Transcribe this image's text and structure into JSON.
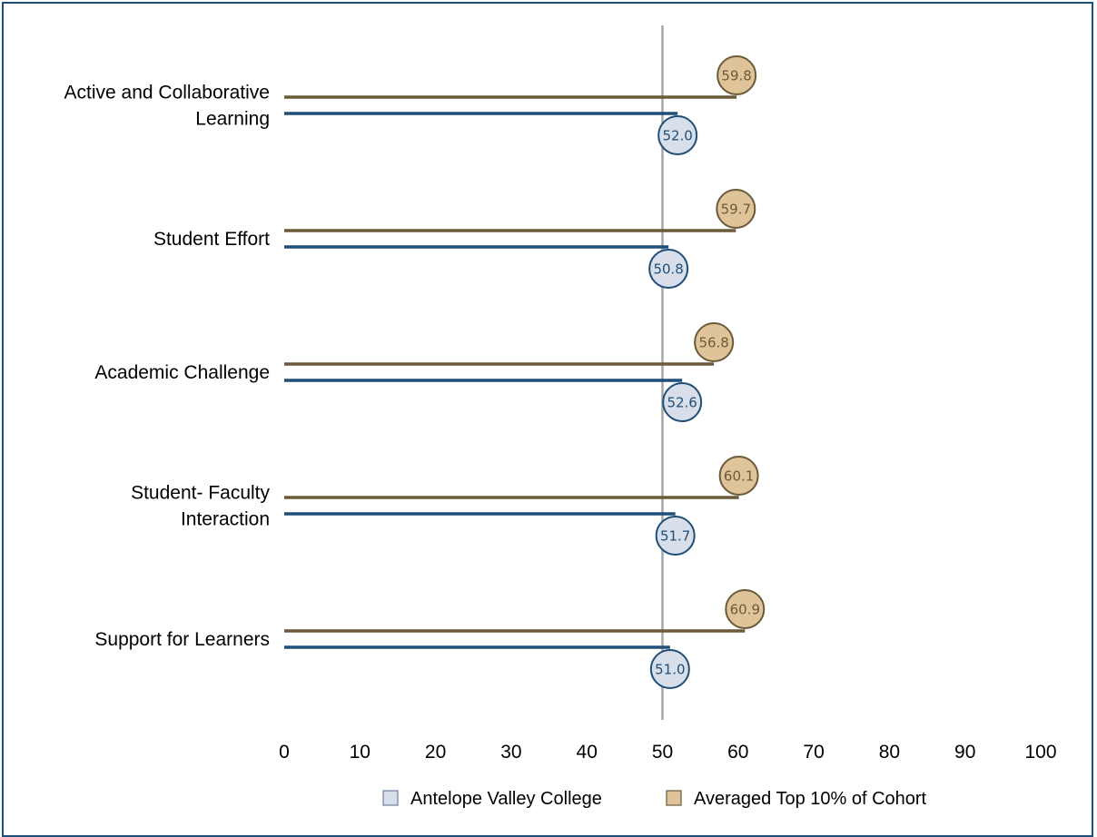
{
  "chart_data": {
    "type": "bar",
    "orientation": "horizontal",
    "categories": [
      [
        "Active and Collaborative",
        "Learning"
      ],
      [
        "Student Effort"
      ],
      [
        "Academic Challenge"
      ],
      [
        "Student- Faculty",
        "Interaction"
      ],
      [
        "Support for Learners"
      ]
    ],
    "series": [
      {
        "name": "Averaged Top 10% of Cohort",
        "values": [
          59.8,
          59.7,
          56.8,
          60.1,
          60.9
        ],
        "color": "#6b5a3a",
        "marker_fill": "#dfc49a",
        "marker_stroke": "#6b5a3a",
        "text_color": "#6b5a3a"
      },
      {
        "name": "Antelope Valley College",
        "values": [
          52.0,
          50.8,
          52.6,
          51.7,
          51.0
        ],
        "color": "#1f4e79",
        "marker_fill": "#d9dfea",
        "marker_stroke": "#1f4e79",
        "text_color": "#1f4e79"
      }
    ],
    "xlim": [
      0,
      100
    ],
    "xticks": [
      0,
      10,
      20,
      30,
      40,
      50,
      60,
      70,
      80,
      90,
      100
    ],
    "reference_line": 50,
    "legend": [
      {
        "label": "Antelope Valley College",
        "fill": "#d9dfea",
        "stroke": "#6d7f99"
      },
      {
        "label": "Averaged Top 10% of Cohort",
        "fill": "#dfc49a",
        "stroke": "#6b5a3a"
      }
    ],
    "legend_position": "bottom",
    "grid": false
  }
}
